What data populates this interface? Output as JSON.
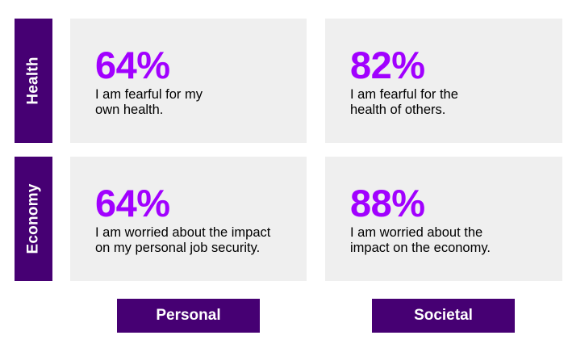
{
  "rows": [
    {
      "label": "Health",
      "cells": [
        {
          "percent": "64%",
          "line1": "I am fearful for my",
          "line2": "own health."
        },
        {
          "percent": "82%",
          "line1": "I am fearful for the",
          "line2": "health of others."
        }
      ]
    },
    {
      "label": "Economy",
      "cells": [
        {
          "percent": "64%",
          "line1": "I am worried about the impact",
          "line2": "on my personal job security."
        },
        {
          "percent": "88%",
          "line1": "I am worried about the",
          "line2": "impact on the economy."
        }
      ]
    }
  ],
  "columns": [
    {
      "label": "Personal"
    },
    {
      "label": "Societal"
    }
  ],
  "colors": {
    "label_background": "#460073",
    "percent_accent": "#a100ff",
    "cell_background": "#efefef"
  }
}
